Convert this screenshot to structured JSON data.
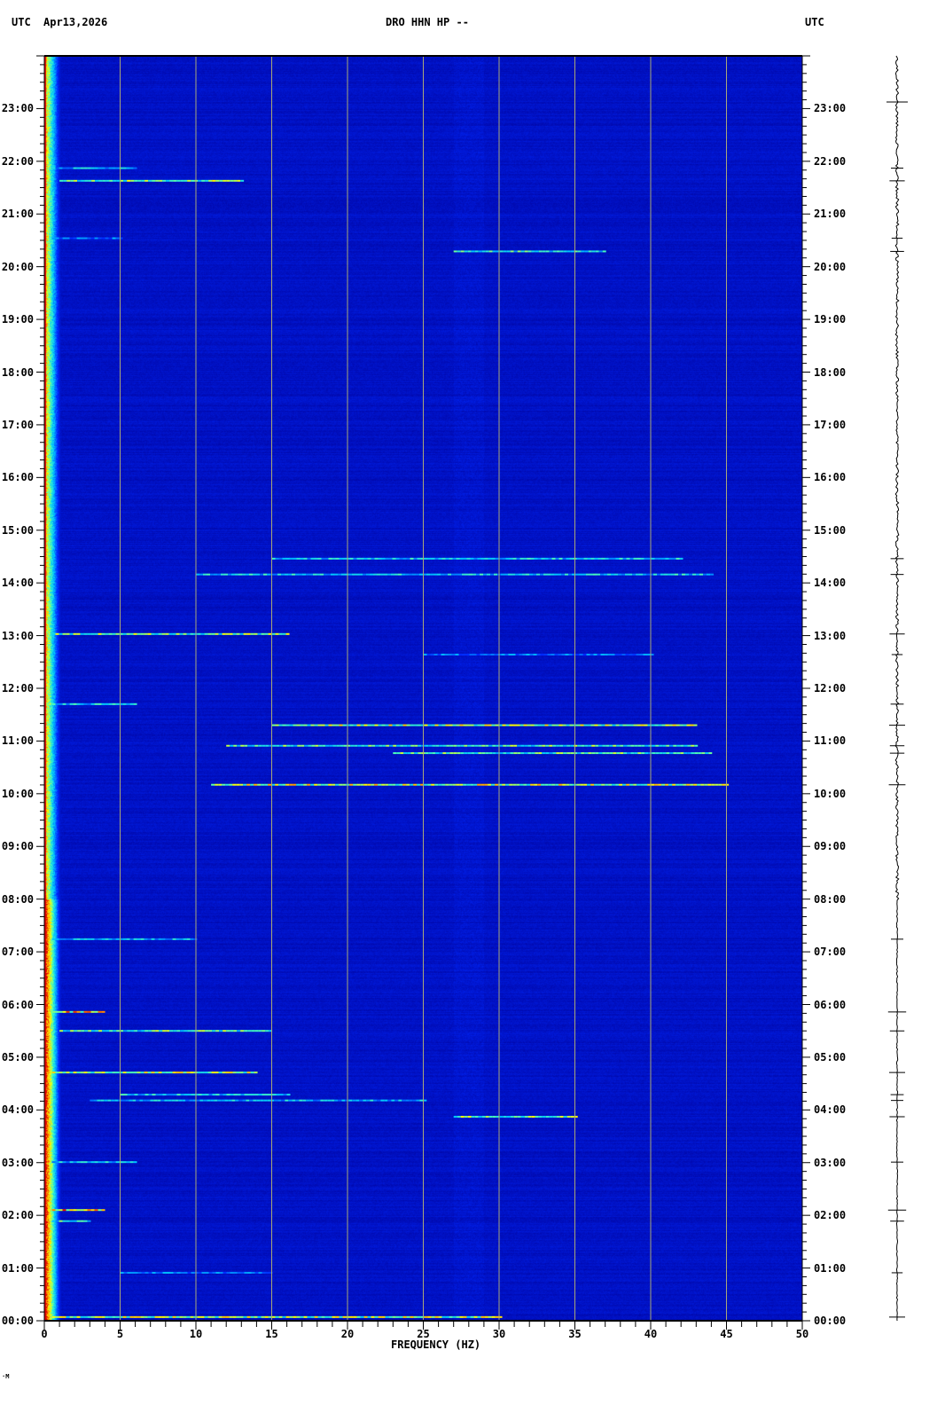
{
  "header": {
    "left_tz": "UTC",
    "date": "Apr13,2026",
    "station": "DRO HHN HP --",
    "right_tz": "UTC"
  },
  "colors": {
    "background": "#0000a8",
    "grid": "#a8a878",
    "low": "#0000a0",
    "mid": "#00c8ff",
    "high": "#ffff00",
    "peak": "#ff0000"
  },
  "corner_mark": "·M",
  "chart_data": {
    "type": "heatmap",
    "title": "DRO HHN HP --",
    "xlabel": "FREQUENCY (HZ)",
    "ylabel": "",
    "xlim": [
      0,
      50
    ],
    "ylim": [
      "00:00",
      "24:00"
    ],
    "x_ticks": [
      "0",
      "5",
      "10",
      "15",
      "20",
      "25",
      "30",
      "35",
      "40",
      "45",
      "50"
    ],
    "y_ticks": [
      "00:00",
      "01:00",
      "02:00",
      "03:00",
      "04:00",
      "05:00",
      "06:00",
      "07:00",
      "08:00",
      "09:00",
      "10:00",
      "11:00",
      "12:00",
      "13:00",
      "14:00",
      "15:00",
      "16:00",
      "17:00",
      "18:00",
      "19:00",
      "20:00",
      "21:00",
      "22:00",
      "23:00"
    ],
    "grid": "vertical every 5 Hz",
    "low_frequency_band_hz": [
      0,
      1
    ],
    "events": [
      {
        "time_h": 21.87,
        "f": [
          0.5,
          6
        ],
        "level": 0.5
      },
      {
        "time_h": 21.63,
        "f": [
          1,
          13
        ],
        "level": 0.7
      },
      {
        "time_h": 20.54,
        "f": [
          0.5,
          5
        ],
        "level": 0.4
      },
      {
        "time_h": 20.29,
        "f": [
          27,
          37
        ],
        "level": 0.6
      },
      {
        "time_h": 14.46,
        "f": [
          15,
          42
        ],
        "level": 0.55
      },
      {
        "time_h": 14.16,
        "f": [
          10,
          44
        ],
        "level": 0.55
      },
      {
        "time_h": 13.03,
        "f": [
          0.5,
          16
        ],
        "level": 0.7
      },
      {
        "time_h": 12.64,
        "f": [
          25,
          40
        ],
        "level": 0.4
      },
      {
        "time_h": 11.7,
        "f": [
          0.5,
          6
        ],
        "level": 0.55
      },
      {
        "time_h": 11.3,
        "f": [
          15,
          43
        ],
        "level": 0.75
      },
      {
        "time_h": 10.91,
        "f": [
          12,
          43
        ],
        "level": 0.65
      },
      {
        "time_h": 10.77,
        "f": [
          23,
          44
        ],
        "level": 0.65
      },
      {
        "time_h": 10.17,
        "f": [
          11,
          45
        ],
        "level": 0.8
      },
      {
        "time_h": 7.24,
        "f": [
          0.5,
          10
        ],
        "level": 0.5
      },
      {
        "time_h": 5.86,
        "f": [
          0.5,
          4
        ],
        "level": 0.9
      },
      {
        "time_h": 5.5,
        "f": [
          1,
          15
        ],
        "level": 0.65
      },
      {
        "time_h": 4.71,
        "f": [
          0.5,
          14
        ],
        "level": 0.75
      },
      {
        "time_h": 4.29,
        "f": [
          5,
          16
        ],
        "level": 0.55
      },
      {
        "time_h": 4.18,
        "f": [
          3,
          25
        ],
        "level": 0.5
      },
      {
        "time_h": 3.87,
        "f": [
          27,
          35
        ],
        "level": 0.7
      },
      {
        "time_h": 3.01,
        "f": [
          0.5,
          6
        ],
        "level": 0.5
      },
      {
        "time_h": 2.1,
        "f": [
          0.5,
          4
        ],
        "level": 0.9
      },
      {
        "time_h": 1.89,
        "f": [
          0.5,
          3
        ],
        "level": 0.6
      },
      {
        "time_h": 0.91,
        "f": [
          5,
          15
        ],
        "level": 0.4
      },
      {
        "time_h": 0.07,
        "f": [
          0.5,
          30
        ],
        "level": 0.75
      }
    ]
  }
}
